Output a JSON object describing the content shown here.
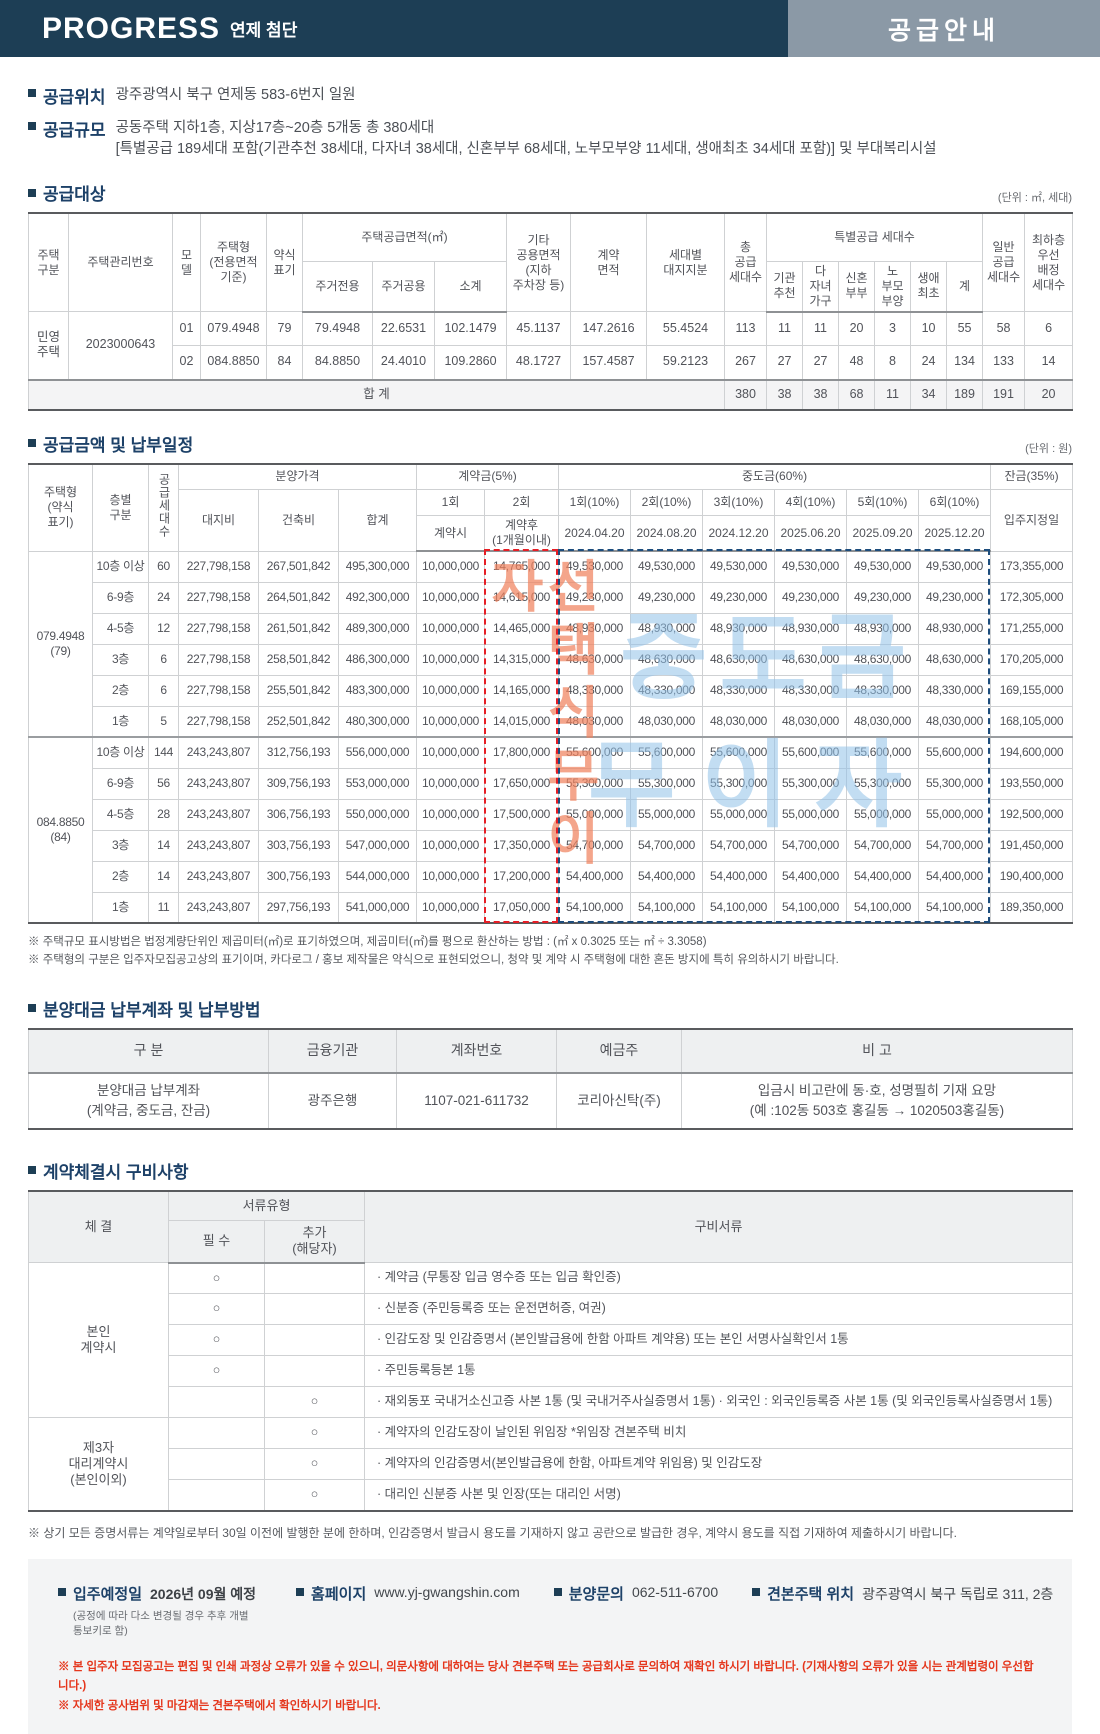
{
  "colors": {
    "navy": "#1d3e55",
    "title_box": "#8b99a6",
    "accent_red": "#e5361c",
    "dash_red": "#e61e25",
    "dash_navy": "#1c4c7c",
    "watermark_blue": "#92c2e9",
    "watermark_orange": "#f0835f"
  },
  "header": {
    "brand": "PROGRESS",
    "brand_sub": "연제 첨단",
    "page_title": "공급안내"
  },
  "intro": {
    "location_label": "공급위치",
    "location_text": "광주광역시 북구 연제동 583-6번지 일원",
    "scale_label": "공급규모",
    "scale_line1": "공동주택 지하1층, 지상17층~20층 5개동 총 380세대",
    "scale_line2": "[특별공급 189세대 포함(기관추천 38세대, 다자녀 38세대, 신혼부부 68세대, 노부모부양 11세대, 생애최초 34세대 포함)] 및 부대복리시설"
  },
  "supply": {
    "title": "공급대상",
    "unit": "(단위 : ㎡, 세대)",
    "h": {
      "htype": "주택\n구분",
      "hmgmt": "주택관리번호",
      "hmodel": "모\n델",
      "hform": "주택형\n(전용면적\n기준)",
      "habbr": "약식\n표기",
      "harea": "주택공급면적(㎡)",
      "hpriv": "주거전용",
      "hcomm": "주거공용",
      "hsub": "소계",
      "hetc": "기타\n공용면적\n(지하\n주차장 등)",
      "hcontract": "계약\n면적",
      "hland": "세대별\n대지지분",
      "htotal": "총\n공급\n세대수",
      "hspecial": "특별공급 세대수",
      "hs1": "기관\n추천",
      "hs2": "다\n자녀\n가구",
      "hs3": "신혼\n부부",
      "hs4": "노\n부모\n부양",
      "hs5": "생애\n최초",
      "hs6": "계",
      "hgeneral": "일반\n공급\n세대수",
      "hlowest": "최하층\n우선\n배정\n세대수"
    },
    "rows": [
      {
        "cells": [
          {
            "t": "민영\n주택",
            "rs": 2
          },
          {
            "t": "2023000643",
            "rs": 2
          },
          {
            "t": "01"
          },
          {
            "t": "079.4948"
          },
          {
            "t": "79"
          },
          {
            "t": "79.4948"
          },
          {
            "t": "22.6531"
          },
          {
            "t": "102.1479"
          },
          {
            "t": "45.1137"
          },
          {
            "t": "147.2616"
          },
          {
            "t": "55.4524"
          },
          {
            "t": "113"
          },
          {
            "t": "11"
          },
          {
            "t": "11"
          },
          {
            "t": "20"
          },
          {
            "t": "3"
          },
          {
            "t": "10"
          },
          {
            "t": "55"
          },
          {
            "t": "58"
          },
          {
            "t": "6"
          }
        ]
      },
      {
        "cells": [
          {
            "t": "02"
          },
          {
            "t": "084.8850"
          },
          {
            "t": "84"
          },
          {
            "t": "84.8850"
          },
          {
            "t": "24.4010"
          },
          {
            "t": "109.2860"
          },
          {
            "t": "48.1727"
          },
          {
            "t": "157.4587"
          },
          {
            "t": "59.2123"
          },
          {
            "t": "267"
          },
          {
            "t": "27"
          },
          {
            "t": "27"
          },
          {
            "t": "48"
          },
          {
            "t": "8"
          },
          {
            "t": "24"
          },
          {
            "t": "134"
          },
          {
            "t": "133"
          },
          {
            "t": "14"
          }
        ]
      },
      {
        "c": "sumrow",
        "cells": [
          {
            "t": "합 계",
            "cs": 11
          },
          {
            "t": "380"
          },
          {
            "t": "38"
          },
          {
            "t": "38"
          },
          {
            "t": "68"
          },
          {
            "t": "11"
          },
          {
            "t": "34"
          },
          {
            "t": "189"
          },
          {
            "t": "191"
          },
          {
            "t": "20"
          }
        ]
      }
    ]
  },
  "payment": {
    "title": "공급금액 및 납부일정",
    "unit": "(단위 : 원)",
    "h": {
      "type": "주택형\n(약식\n표기)",
      "floor": "층별\n구분",
      "count": "공급세대수",
      "price": "분양가격",
      "land": "대지비",
      "building": "건축비",
      "total": "합계",
      "deposit": "계약금(5%)",
      "d1": "1회",
      "d2": "2회",
      "d1sub": "계약시",
      "d2sub": "계약후\n(1개월이내)",
      "interim": "중도금(60%)",
      "i1": "1회(10%)",
      "i2": "2회(10%)",
      "i3": "3회(10%)",
      "i4": "4회(10%)",
      "i5": "5회(10%)",
      "i6": "6회(10%)",
      "dt1": "2024.04.20",
      "dt2": "2024.08.20",
      "dt3": "2024.12.20",
      "dt4": "2025.06.20",
      "dt5": "2025.09.20",
      "dt6": "2025.12.20",
      "balance": "잔금(35%)",
      "movein": "입주지정일"
    },
    "watermark": {
      "line1": "중도금",
      "line2": "무이자",
      "vertical": "선택식무이자"
    },
    "rows": [
      {
        "cells": [
          {
            "t": "079.4948\n(79)",
            "rs": 6
          },
          {
            "t": "10층 이상"
          },
          {
            "t": "60"
          },
          {
            "t": "227,798,158"
          },
          {
            "t": "267,501,842"
          },
          {
            "t": "495,300,000"
          },
          {
            "t": "10,000,000"
          },
          {
            "t": "14,765,000"
          },
          {
            "t": "49,530,000"
          },
          {
            "t": "49,530,000"
          },
          {
            "t": "49,530,000"
          },
          {
            "t": "49,530,000"
          },
          {
            "t": "49,530,000"
          },
          {
            "t": "49,530,000"
          },
          {
            "t": "173,355,000"
          }
        ]
      },
      {
        "cells": [
          {
            "t": "6-9층"
          },
          {
            "t": "24"
          },
          {
            "t": "227,798,158"
          },
          {
            "t": "264,501,842"
          },
          {
            "t": "492,300,000"
          },
          {
            "t": "10,000,000"
          },
          {
            "t": "14,615,000"
          },
          {
            "t": "49,230,000"
          },
          {
            "t": "49,230,000"
          },
          {
            "t": "49,230,000"
          },
          {
            "t": "49,230,000"
          },
          {
            "t": "49,230,000"
          },
          {
            "t": "49,230,000"
          },
          {
            "t": "172,305,000"
          }
        ]
      },
      {
        "cells": [
          {
            "t": "4-5층"
          },
          {
            "t": "12"
          },
          {
            "t": "227,798,158"
          },
          {
            "t": "261,501,842"
          },
          {
            "t": "489,300,000"
          },
          {
            "t": "10,000,000"
          },
          {
            "t": "14,465,000"
          },
          {
            "t": "48,930,000"
          },
          {
            "t": "48,930,000"
          },
          {
            "t": "48,930,000"
          },
          {
            "t": "48,930,000"
          },
          {
            "t": "48,930,000"
          },
          {
            "t": "48,930,000"
          },
          {
            "t": "171,255,000"
          }
        ]
      },
      {
        "cells": [
          {
            "t": "3층"
          },
          {
            "t": "6"
          },
          {
            "t": "227,798,158"
          },
          {
            "t": "258,501,842"
          },
          {
            "t": "486,300,000"
          },
          {
            "t": "10,000,000"
          },
          {
            "t": "14,315,000"
          },
          {
            "t": "48,630,000"
          },
          {
            "t": "48,630,000"
          },
          {
            "t": "48,630,000"
          },
          {
            "t": "48,630,000"
          },
          {
            "t": "48,630,000"
          },
          {
            "t": "48,630,000"
          },
          {
            "t": "170,205,000"
          }
        ]
      },
      {
        "cells": [
          {
            "t": "2층"
          },
          {
            "t": "6"
          },
          {
            "t": "227,798,158"
          },
          {
            "t": "255,501,842"
          },
          {
            "t": "483,300,000"
          },
          {
            "t": "10,000,000"
          },
          {
            "t": "14,165,000"
          },
          {
            "t": "48,330,000"
          },
          {
            "t": "48,330,000"
          },
          {
            "t": "48,330,000"
          },
          {
            "t": "48,330,000"
          },
          {
            "t": "48,330,000"
          },
          {
            "t": "48,330,000"
          },
          {
            "t": "169,155,000"
          }
        ]
      },
      {
        "cells": [
          {
            "t": "1층"
          },
          {
            "t": "5"
          },
          {
            "t": "227,798,158"
          },
          {
            "t": "252,501,842"
          },
          {
            "t": "480,300,000"
          },
          {
            "t": "10,000,000"
          },
          {
            "t": "14,015,000"
          },
          {
            "t": "48,030,000"
          },
          {
            "t": "48,030,000"
          },
          {
            "t": "48,030,000"
          },
          {
            "t": "48,030,000"
          },
          {
            "t": "48,030,000"
          },
          {
            "t": "48,030,000"
          },
          {
            "t": "168,105,000"
          }
        ]
      },
      {
        "c": "blocksep",
        "cells": [
          {
            "t": "084.8850\n(84)",
            "rs": 6
          },
          {
            "t": "10층 이상"
          },
          {
            "t": "144"
          },
          {
            "t": "243,243,807"
          },
          {
            "t": "312,756,193"
          },
          {
            "t": "556,000,000"
          },
          {
            "t": "10,000,000"
          },
          {
            "t": "17,800,000"
          },
          {
            "t": "55,600,000"
          },
          {
            "t": "55,600,000"
          },
          {
            "t": "55,600,000"
          },
          {
            "t": "55,600,000"
          },
          {
            "t": "55,600,000"
          },
          {
            "t": "55,600,000"
          },
          {
            "t": "194,600,000"
          }
        ]
      },
      {
        "cells": [
          {
            "t": "6-9층"
          },
          {
            "t": "56"
          },
          {
            "t": "243,243,807"
          },
          {
            "t": "309,756,193"
          },
          {
            "t": "553,000,000"
          },
          {
            "t": "10,000,000"
          },
          {
            "t": "17,650,000"
          },
          {
            "t": "55,300,000"
          },
          {
            "t": "55,300,000"
          },
          {
            "t": "55,300,000"
          },
          {
            "t": "55,300,000"
          },
          {
            "t": "55,300,000"
          },
          {
            "t": "55,300,000"
          },
          {
            "t": "193,550,000"
          }
        ]
      },
      {
        "cells": [
          {
            "t": "4-5층"
          },
          {
            "t": "28"
          },
          {
            "t": "243,243,807"
          },
          {
            "t": "306,756,193"
          },
          {
            "t": "550,000,000"
          },
          {
            "t": "10,000,000"
          },
          {
            "t": "17,500,000"
          },
          {
            "t": "55,000,000"
          },
          {
            "t": "55,000,000"
          },
          {
            "t": "55,000,000"
          },
          {
            "t": "55,000,000"
          },
          {
            "t": "55,000,000"
          },
          {
            "t": "55,000,000"
          },
          {
            "t": "192,500,000"
          }
        ]
      },
      {
        "cells": [
          {
            "t": "3층"
          },
          {
            "t": "14"
          },
          {
            "t": "243,243,807"
          },
          {
            "t": "303,756,193"
          },
          {
            "t": "547,000,000"
          },
          {
            "t": "10,000,000"
          },
          {
            "t": "17,350,000"
          },
          {
            "t": "54,700,000"
          },
          {
            "t": "54,700,000"
          },
          {
            "t": "54,700,000"
          },
          {
            "t": "54,700,000"
          },
          {
            "t": "54,700,000"
          },
          {
            "t": "54,700,000"
          },
          {
            "t": "191,450,000"
          }
        ]
      },
      {
        "cells": [
          {
            "t": "2층"
          },
          {
            "t": "14"
          },
          {
            "t": "243,243,807"
          },
          {
            "t": "300,756,193"
          },
          {
            "t": "544,000,000"
          },
          {
            "t": "10,000,000"
          },
          {
            "t": "17,200,000"
          },
          {
            "t": "54,400,000"
          },
          {
            "t": "54,400,000"
          },
          {
            "t": "54,400,000"
          },
          {
            "t": "54,400,000"
          },
          {
            "t": "54,400,000"
          },
          {
            "t": "54,400,000"
          },
          {
            "t": "190,400,000"
          }
        ]
      },
      {
        "cells": [
          {
            "t": "1층"
          },
          {
            "t": "11"
          },
          {
            "t": "243,243,807"
          },
          {
            "t": "297,756,193"
          },
          {
            "t": "541,000,000"
          },
          {
            "t": "10,000,000"
          },
          {
            "t": "17,050,000"
          },
          {
            "t": "54,100,000"
          },
          {
            "t": "54,100,000"
          },
          {
            "t": "54,100,000"
          },
          {
            "t": "54,100,000"
          },
          {
            "t": "54,100,000"
          },
          {
            "t": "54,100,000"
          },
          {
            "t": "189,350,000"
          }
        ]
      }
    ],
    "notes": [
      "※ 주택규모 표시방법은 법정계량단위인 제곱미터(㎡)로 표기하였으며, 제곱미터(㎡)를 평으로 환산하는 방법 : (㎡ x 0.3025 또는 ㎡ ÷ 3.3058)",
      "※ 주택형의 구분은 입주자모집공고상의 표기이며, 카다로그 / 홍보 제작물은 약식으로 표현되었으니, 청약 및 계약 시 주택형에 대한 혼돈 방지에 특히 유의하시기 바랍니다."
    ]
  },
  "account": {
    "title": "분양대금 납부계좌 및 납부방법",
    "headers": [
      "구 분",
      "금융기관",
      "계좌번호",
      "예금주",
      "비 고"
    ],
    "row": [
      "분양대금 납부계좌\n(계약금, 중도금, 잔금)",
      "광주은행",
      "1107-021-611732",
      "코리아신탁(주)",
      "입금시 비고란에 동·호, 성명필히 기재 요망\n(예 :102동 503호 홍길동 → 1020503홍길동)"
    ]
  },
  "requirements": {
    "title": "계약체결시 구비사항",
    "h": {
      "contract": "체 결",
      "doctype": "서류유형",
      "required": "필 수",
      "extra": "추가\n(해당자)",
      "docs": "구비서류"
    },
    "rows": [
      {
        "cells": [
          {
            "t": "본인\n계약시",
            "rs": 5,
            "c": "hd"
          },
          {
            "t": "○"
          },
          {
            "t": ""
          },
          {
            "t": "· 계약금 (무통장 입금 영수증 또는 입금 확인증)",
            "c": "left"
          }
        ]
      },
      {
        "cells": [
          {
            "t": "○"
          },
          {
            "t": ""
          },
          {
            "t": "· 신분증 (주민등록증 또는 운전면허증, 여권)",
            "c": "left"
          }
        ]
      },
      {
        "cells": [
          {
            "t": "○"
          },
          {
            "t": ""
          },
          {
            "t": "· 인감도장 및 인감증명서 (본인발급용에 한함 아파트 계약용) 또는 본인 서명사실확인서 1통",
            "c": "left"
          }
        ]
      },
      {
        "cells": [
          {
            "t": "○"
          },
          {
            "t": ""
          },
          {
            "t": "· 주민등록등본 1통",
            "c": "left"
          }
        ]
      },
      {
        "cells": [
          {
            "t": ""
          },
          {
            "t": "○"
          },
          {
            "t": "· 재외동포 국내거소신고증 사본 1통 (및 국내거주사실증명서 1통)   · 외국인 : 외국인등록증 사본 1통 (및 외국인등록사실증명서 1통)",
            "c": "left"
          }
        ]
      },
      {
        "cells": [
          {
            "t": "제3자\n대리계약시\n(본인이외)",
            "rs": 3,
            "c": "hd"
          },
          {
            "t": ""
          },
          {
            "t": "○"
          },
          {
            "t": "· 계약자의 인감도장이 날인된 위임장  *위임장 견본주택 비치",
            "c": "left"
          }
        ]
      },
      {
        "cells": [
          {
            "t": ""
          },
          {
            "t": "○"
          },
          {
            "t": "· 계약자의 인감증명서(본인발급용에 한함, 아파트계약 위임용) 및 인감도장",
            "c": "left"
          }
        ]
      },
      {
        "cells": [
          {
            "t": ""
          },
          {
            "t": "○"
          },
          {
            "t": "· 대리인 신분증 사본 및 인장(또는 대리인 서명)",
            "c": "left"
          }
        ]
      }
    ],
    "note": "※ 상기 모든 증명서류는 계약일로부터 30일 이전에 발행한 분에 한하며, 인감증명서 발급시 용도를 기재하지 않고 공란으로 발급한 경우, 계약시 용도를 직접 기재하여 제출하시기 바랍니다."
  },
  "footer": {
    "movein_label": "입주예정일",
    "movein_value": "2026년 09월 예정",
    "movein_note": "(공정에 따라 다소 변경될 경우 추후 개별 통보키로 함)",
    "homepage_label": "홈페이지",
    "homepage_value": "www.yj-gwangshin.com",
    "inquiry_label": "분양문의",
    "inquiry_value": "062-511-6700",
    "model_label": "견본주택 위치",
    "model_value": "광주광역시 북구 독립로 311, 2층",
    "red_notes": [
      "※  본 입주자 모집공고는 편집 및 인쇄 과정상 오류가 있을 수 있으니,  의문사항에 대하여는 당사 견본주택 또는 공급회사로 문의하여  재확인 하시기 바랍니다. (기재사항의 오류가 있을 시는 관계법령이 우선합니다.)",
      "※  자세한 공사범위 및 마감재는 견본주택에서 확인하시기 바랍니다."
    ]
  }
}
